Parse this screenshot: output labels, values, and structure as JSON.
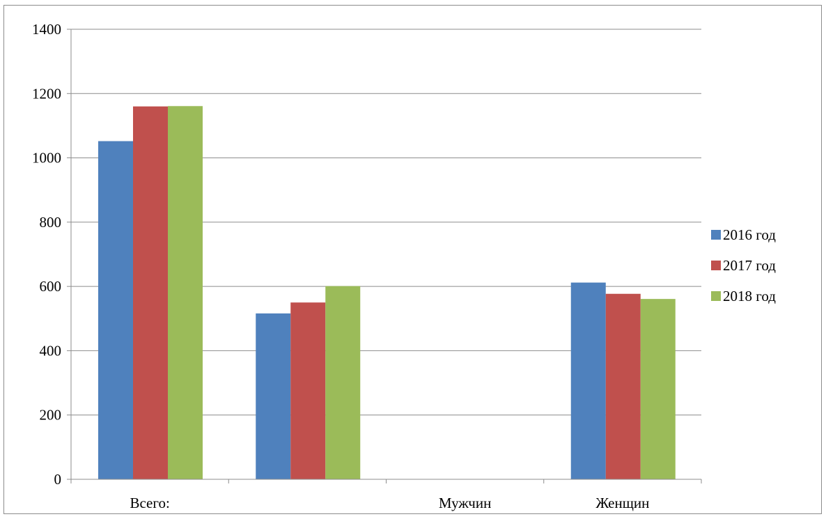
{
  "chart_data": {
    "type": "bar",
    "title": "",
    "xlabel": "",
    "ylabel": "",
    "categories": [
      "Всего:",
      "",
      "Мужчин",
      "Женщин"
    ],
    "series": [
      {
        "name": "2016 год",
        "color": "#4F81BD",
        "values": [
          1052,
          516,
          null,
          612
        ]
      },
      {
        "name": "2017 год",
        "color": "#C0504D",
        "values": [
          1160,
          550,
          null,
          577
        ]
      },
      {
        "name": "2018 год",
        "color": "#9BBB59",
        "values": [
          1161,
          601,
          null,
          561
        ]
      }
    ],
    "ylim": [
      0,
      1400
    ],
    "yticks": [
      0,
      200,
      400,
      600,
      800,
      1000,
      1200,
      1400
    ],
    "grid": true,
    "legend_position": "right"
  }
}
